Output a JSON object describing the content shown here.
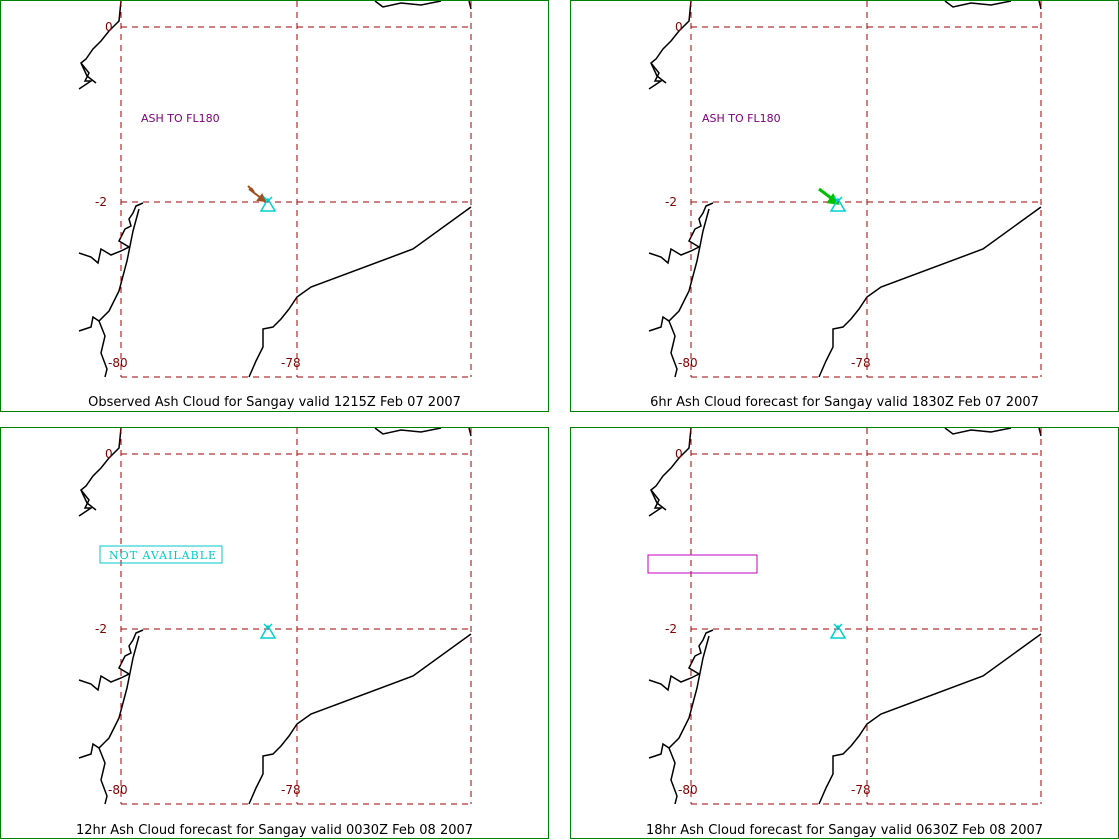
{
  "colors": {
    "border": "#008000",
    "grid": "#a00000",
    "coast": "#000000",
    "volcano": "#00d0d0",
    "ash_text": "#800080",
    "arrow_obs": "#a05020",
    "arrow_fc6": "#00c000",
    "not_available": "#00c8c8",
    "empty_box": "#c000c0"
  },
  "grid_labels": {
    "lat_top": "0",
    "lat_mid": "-2",
    "lon_left": "-80",
    "lon_right": "-78"
  },
  "panels": [
    {
      "id": "observed",
      "caption": "Observed Ash Cloud for Sangay valid 1215Z Feb 07 2007",
      "ash_label": "ASH TO FL180",
      "status_box": "",
      "arrow_icon": "arrow-observed"
    },
    {
      "id": "fc6",
      "caption": "6hr Ash Cloud forecast for Sangay valid 1830Z Feb 07 2007",
      "ash_label": "ASH TO FL180",
      "status_box": "",
      "arrow_icon": "arrow-forecast"
    },
    {
      "id": "fc12",
      "caption": "12hr Ash Cloud forecast for Sangay valid 0030Z Feb 08 2007",
      "ash_label": "",
      "status_box": "NOT AVAILABLE",
      "arrow_icon": ""
    },
    {
      "id": "fc18",
      "caption": "18hr Ash Cloud forecast for Sangay valid 0630Z Feb 08 2007",
      "ash_label": "",
      "status_box": "",
      "arrow_icon": ""
    }
  ]
}
